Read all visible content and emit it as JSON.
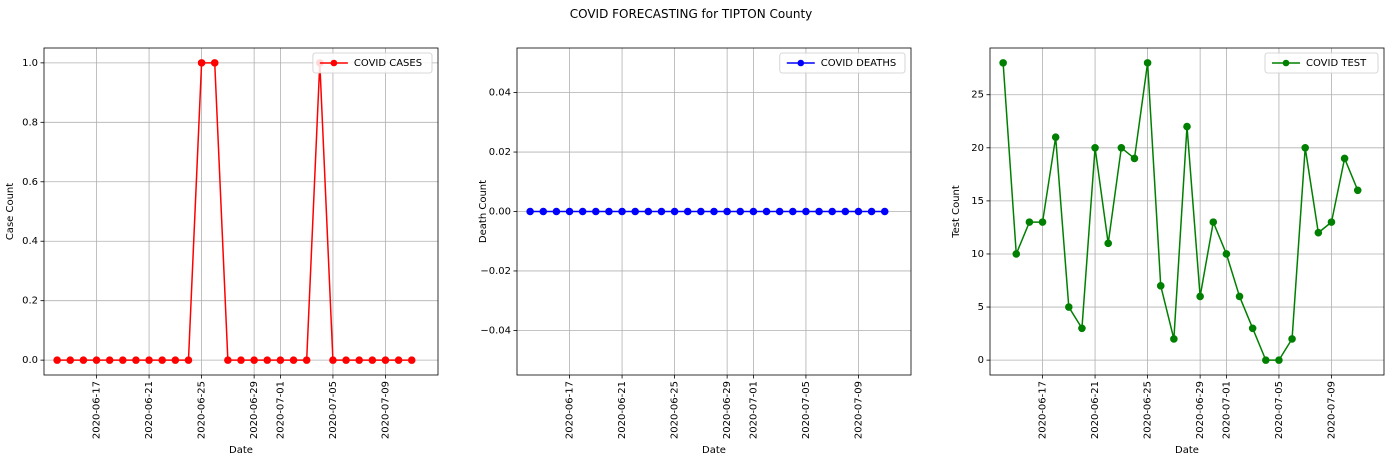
{
  "figure": {
    "suptitle": "COVID FORECASTING for TIPTON County"
  },
  "chart_data": [
    {
      "type": "line",
      "xlabel": "Date",
      "ylabel": "Case Count",
      "xlim": [
        "2020-06-13",
        "2020-07-13"
      ],
      "ylim": [
        -0.05,
        1.05
      ],
      "yticks": [
        0.0,
        0.2,
        0.4,
        0.6,
        0.8,
        1.0
      ],
      "ytick_labels": [
        "0.0",
        "0.2",
        "0.4",
        "0.6",
        "0.8",
        "1.0"
      ],
      "xticks": [
        "2020-06-17",
        "2020-06-21",
        "2020-06-25",
        "2020-06-29",
        "2020-07-01",
        "2020-07-05",
        "2020-07-09"
      ],
      "grid": true,
      "legend_position": "top-right",
      "series": [
        {
          "name": "COVID CASES",
          "color": "#ff0000",
          "marker": "circle",
          "x": [
            "2020-06-14",
            "2020-06-15",
            "2020-06-16",
            "2020-06-17",
            "2020-06-18",
            "2020-06-19",
            "2020-06-20",
            "2020-06-21",
            "2020-06-22",
            "2020-06-23",
            "2020-06-24",
            "2020-06-25",
            "2020-06-26",
            "2020-06-27",
            "2020-06-28",
            "2020-06-29",
            "2020-06-30",
            "2020-07-01",
            "2020-07-02",
            "2020-07-03",
            "2020-07-04",
            "2020-07-05",
            "2020-07-06",
            "2020-07-07",
            "2020-07-08",
            "2020-07-09",
            "2020-07-10",
            "2020-07-11"
          ],
          "values": [
            0,
            0,
            0,
            0,
            0,
            0,
            0,
            0,
            0,
            0,
            0,
            1,
            1,
            0,
            0,
            0,
            0,
            0,
            0,
            0,
            1,
            0,
            0,
            0,
            0,
            0,
            0,
            0
          ]
        }
      ]
    },
    {
      "type": "line",
      "xlabel": "Date",
      "ylabel": "Death Count",
      "xlim": [
        "2020-06-13",
        "2020-07-13"
      ],
      "ylim": [
        -0.055,
        0.055
      ],
      "yticks": [
        -0.04,
        -0.02,
        0.0,
        0.02,
        0.04
      ],
      "ytick_labels": [
        "−0.04",
        "−0.02",
        "0.00",
        "0.02",
        "0.04"
      ],
      "xticks": [
        "2020-06-17",
        "2020-06-21",
        "2020-06-25",
        "2020-06-29",
        "2020-07-01",
        "2020-07-05",
        "2020-07-09"
      ],
      "grid": true,
      "legend_position": "top-right",
      "series": [
        {
          "name": "COVID DEATHS",
          "color": "#0000ff",
          "marker": "circle",
          "x": [
            "2020-06-14",
            "2020-06-15",
            "2020-06-16",
            "2020-06-17",
            "2020-06-18",
            "2020-06-19",
            "2020-06-20",
            "2020-06-21",
            "2020-06-22",
            "2020-06-23",
            "2020-06-24",
            "2020-06-25",
            "2020-06-26",
            "2020-06-27",
            "2020-06-28",
            "2020-06-29",
            "2020-06-30",
            "2020-07-01",
            "2020-07-02",
            "2020-07-03",
            "2020-07-04",
            "2020-07-05",
            "2020-07-06",
            "2020-07-07",
            "2020-07-08",
            "2020-07-09",
            "2020-07-10",
            "2020-07-11"
          ],
          "values": [
            0,
            0,
            0,
            0,
            0,
            0,
            0,
            0,
            0,
            0,
            0,
            0,
            0,
            0,
            0,
            0,
            0,
            0,
            0,
            0,
            0,
            0,
            0,
            0,
            0,
            0,
            0,
            0
          ]
        }
      ]
    },
    {
      "type": "line",
      "xlabel": "Date",
      "ylabel": "Test Count",
      "xlim": [
        "2020-06-13",
        "2020-07-13"
      ],
      "ylim": [
        -1.4,
        29.4
      ],
      "yticks": [
        0,
        5,
        10,
        15,
        20,
        25
      ],
      "ytick_labels": [
        "0",
        "5",
        "10",
        "15",
        "20",
        "25"
      ],
      "xticks": [
        "2020-06-17",
        "2020-06-21",
        "2020-06-25",
        "2020-06-29",
        "2020-07-01",
        "2020-07-05",
        "2020-07-09"
      ],
      "grid": true,
      "legend_position": "top-right",
      "series": [
        {
          "name": "COVID TEST",
          "color": "#008000",
          "marker": "circle",
          "x": [
            "2020-06-14",
            "2020-06-15",
            "2020-06-16",
            "2020-06-17",
            "2020-06-18",
            "2020-06-19",
            "2020-06-20",
            "2020-06-21",
            "2020-06-22",
            "2020-06-23",
            "2020-06-24",
            "2020-06-25",
            "2020-06-26",
            "2020-06-27",
            "2020-06-28",
            "2020-06-29",
            "2020-06-30",
            "2020-07-01",
            "2020-07-02",
            "2020-07-03",
            "2020-07-04",
            "2020-07-05",
            "2020-07-06",
            "2020-07-07",
            "2020-07-08",
            "2020-07-09",
            "2020-07-10",
            "2020-07-11"
          ],
          "values": [
            28,
            10,
            13,
            13,
            21,
            5,
            3,
            20,
            11,
            20,
            19,
            28,
            7,
            2,
            22,
            6,
            13,
            10,
            6,
            3,
            0,
            0,
            2,
            20,
            12,
            13,
            19,
            16
          ]
        }
      ]
    }
  ]
}
